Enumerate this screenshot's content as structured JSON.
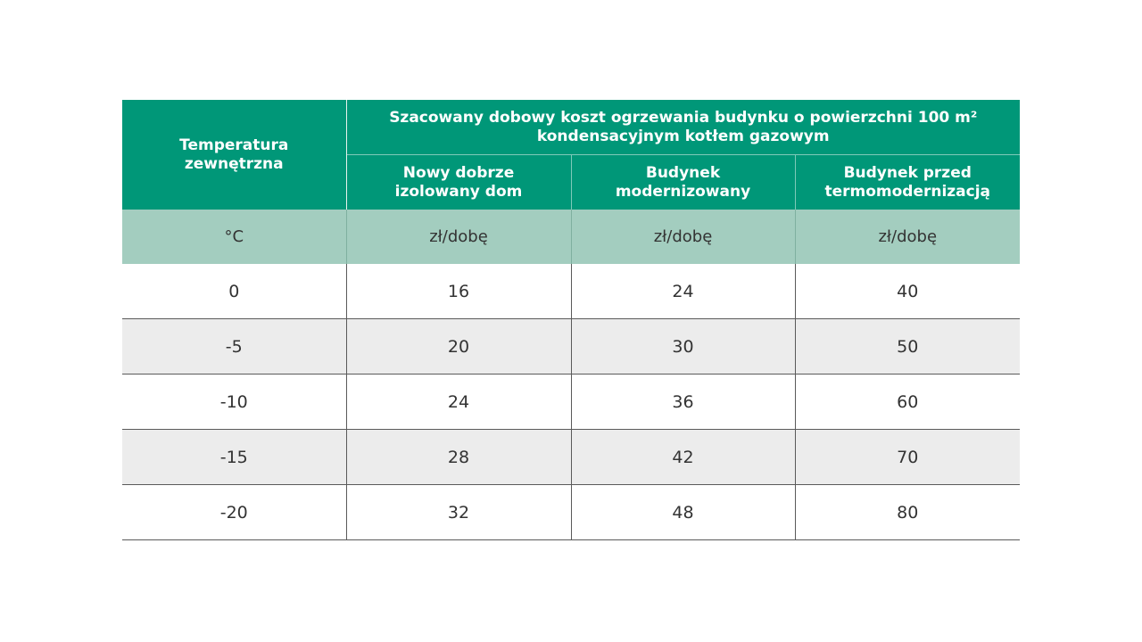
{
  "table": {
    "corner_header": "Temperatura zewnętrzna",
    "group_header": "Szacowany dobowy koszt ogrzewania budynku o powierzchni 100 m² kondensacyjnym kotłem gazowym",
    "col_headers": [
      "Nowy dobrze izolowany dom",
      "Budynek modernizowany",
      "Budynek przed termomodernizacją"
    ],
    "units": [
      "°C",
      "zł/dobę",
      "zł/dobę",
      "zł/dobę"
    ],
    "rows": [
      [
        "0",
        "16",
        "24",
        "40"
      ],
      [
        "-5",
        "20",
        "30",
        "50"
      ],
      [
        "-10",
        "24",
        "36",
        "60"
      ],
      [
        "-15",
        "28",
        "42",
        "70"
      ],
      [
        "-20",
        "32",
        "48",
        "80"
      ]
    ]
  },
  "colors": {
    "header_green": "#009778",
    "units_green": "#a3cdbf",
    "stripe_gray": "#ececec"
  }
}
